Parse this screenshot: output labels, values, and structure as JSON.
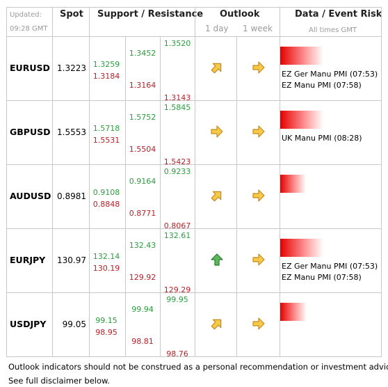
{
  "header": {
    "updated": "Updated:",
    "time": "09:28 GMT",
    "spot": "Spot",
    "support_resistance": "Support / Resistance",
    "outlook": "Outlook",
    "outlook_day": "1 day",
    "outlook_week": "1 week",
    "event_risk": "Data / Event Risk",
    "times_note": "All times GMT"
  },
  "rows": [
    {
      "pair": "EURUSD",
      "spot": "1.3223",
      "levels": [
        [
          "1.3259",
          "1.3184"
        ],
        [
          "1.3452",
          "1.3164"
        ],
        [
          "1.3520",
          "1.3143"
        ]
      ],
      "events": [
        "EZ Ger Manu PMI (07:53)",
        "EZ Manu PMI (07:58)"
      ]
    },
    {
      "pair": "GBPUSD",
      "spot": "1.5553",
      "levels": [
        [
          "1.5718",
          "1.5531"
        ],
        [
          "1.5752",
          "1.5504"
        ],
        [
          "1.5845",
          "1.5423"
        ]
      ],
      "events": [
        "UK Manu PMI (08:28)"
      ]
    },
    {
      "pair": "AUDUSD",
      "spot": "0.8981",
      "levels": [
        [
          "0.9108",
          "0.8848"
        ],
        [
          "0.9164",
          "0.8771"
        ],
        [
          "0.9233",
          "0.8067"
        ]
      ],
      "events": []
    },
    {
      "pair": "EURJPY",
      "spot": "130.97",
      "levels": [
        [
          "132.14",
          "130.19"
        ],
        [
          "132.43",
          "129.92"
        ],
        [
          "132.61",
          "129.29"
        ]
      ],
      "events": [
        "EZ Ger Manu PMI (07:53)",
        "EZ Manu PMI (07:58)"
      ]
    },
    {
      "pair": "USDJPY",
      "spot": "99.05",
      "levels": [
        [
          "99.15",
          "98.95"
        ],
        [
          "99.94",
          "98.81"
        ],
        [
          "99.95",
          "98.76"
        ]
      ],
      "events": []
    }
  ],
  "footer": [
    "Outlook indicators should not be construed as a personal recommendation or investment advice.",
    "See full disclaimer below."
  ]
}
